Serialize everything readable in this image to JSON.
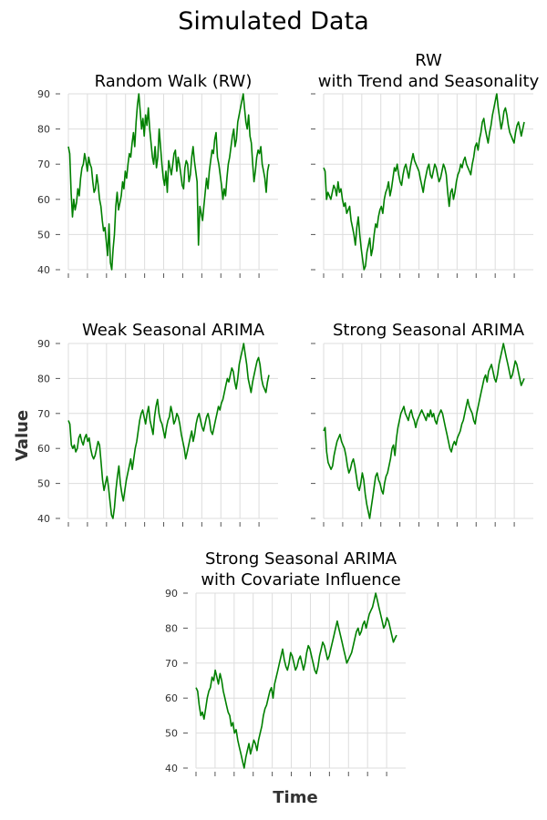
{
  "chart_data": {
    "title": "Simulated Data",
    "xlabel": "Time",
    "ylabel": "Value",
    "type": "line",
    "grid": true,
    "line_color": "#008000",
    "panels": [
      {
        "title": "Random Walk (RW)",
        "type": "line",
        "ylim": [
          40,
          90
        ],
        "yticks": [
          40,
          50,
          60,
          70,
          80,
          90
        ],
        "show_ytick_labels": true,
        "series": [
          {
            "values": [
              75,
              73,
              62,
              55,
              60,
              57,
              59,
              63,
              61,
              66,
              69,
              70,
              73,
              71,
              68,
              72,
              70,
              69,
              65,
              62,
              63,
              67,
              64,
              60,
              58,
              54,
              51,
              52,
              48,
              44,
              53,
              42,
              40,
              46,
              50,
              58,
              62,
              57,
              59,
              61,
              65,
              63,
              68,
              66,
              70,
              73,
              72,
              76,
              79,
              75,
              82,
              87,
              90,
              85,
              80,
              83,
              78,
              84,
              81,
              86,
              80,
              76,
              72,
              70,
              75,
              69,
              72,
              80,
              75,
              70,
              66,
              64,
              68,
              62,
              71,
              69,
              67,
              70,
              73,
              74,
              68,
              72,
              70,
              67,
              64,
              63,
              69,
              71,
              70,
              65,
              67,
              72,
              75,
              71,
              68,
              65,
              47,
              58,
              56,
              54,
              58,
              62,
              66,
              63,
              68,
              71,
              74,
              73,
              77,
              79,
              72,
              70,
              67,
              64,
              60,
              63,
              61,
              66,
              70,
              72,
              75,
              78,
              80,
              75,
              77,
              82,
              84,
              86,
              88,
              90,
              86,
              82,
              80,
              84,
              78,
              76,
              70,
              65,
              68,
              72,
              74,
              73,
              75,
              70,
              68,
              66,
              62,
              68,
              70
            ]
          }
        ]
      },
      {
        "title": "RW\nwith Trend and Seasonality",
        "type": "line",
        "ylim": [
          40,
          90
        ],
        "yticks": [
          40,
          50,
          60,
          70,
          80,
          90
        ],
        "show_ytick_labels": false,
        "series": [
          {
            "values": [
              69,
              68,
              60,
              62,
              61,
              60,
              62,
              64,
              63,
              61,
              65,
              62,
              63,
              60,
              58,
              59,
              56,
              57,
              58,
              54,
              52,
              50,
              47,
              52,
              55,
              50,
              46,
              43,
              40,
              41,
              45,
              47,
              49,
              44,
              46,
              50,
              53,
              52,
              55,
              57,
              58,
              56,
              60,
              62,
              63,
              65,
              61,
              63,
              66,
              69,
              68,
              70,
              67,
              65,
              64,
              67,
              69,
              70,
              68,
              66,
              69,
              71,
              73,
              71,
              70,
              69,
              68,
              66,
              64,
              62,
              65,
              67,
              69,
              70,
              67,
              66,
              68,
              70,
              69,
              67,
              65,
              66,
              68,
              70,
              69,
              67,
              62,
              58,
              62,
              63,
              60,
              62,
              65,
              67,
              68,
              70,
              69,
              71,
              72,
              70,
              69,
              68,
              67,
              70,
              72,
              75,
              76,
              74,
              77,
              79,
              82,
              83,
              80,
              78,
              76,
              79,
              81,
              84,
              86,
              88,
              90,
              86,
              83,
              80,
              82,
              85,
              86,
              84,
              81,
              79,
              78,
              77,
              76,
              79,
              81,
              82,
              80,
              78,
              80,
              82
            ]
          }
        ]
      },
      {
        "title": "Weak Seasonal ARIMA",
        "type": "line",
        "ylim": [
          40,
          90
        ],
        "yticks": [
          40,
          50,
          60,
          70,
          80,
          90
        ],
        "show_ytick_labels": true,
        "series": [
          {
            "values": [
              68,
              67,
              61,
              60,
              61,
              59,
              60,
              63,
              64,
              62,
              61,
              63,
              64,
              62,
              63,
              60,
              58,
              57,
              58,
              60,
              62,
              61,
              56,
              51,
              48,
              50,
              52,
              49,
              45,
              41,
              40,
              43,
              48,
              52,
              55,
              50,
              47,
              45,
              48,
              51,
              53,
              55,
              57,
              54,
              57,
              60,
              62,
              65,
              68,
              70,
              71,
              69,
              67,
              70,
              72,
              68,
              66,
              64,
              69,
              72,
              74,
              70,
              68,
              67,
              65,
              63,
              66,
              68,
              69,
              72,
              70,
              67,
              68,
              70,
              69,
              67,
              64,
              62,
              60,
              57,
              59,
              61,
              63,
              65,
              62,
              64,
              67,
              69,
              70,
              68,
              66,
              65,
              67,
              69,
              70,
              68,
              65,
              64,
              66,
              68,
              70,
              72,
              71,
              73,
              74,
              76,
              78,
              80,
              79,
              81,
              83,
              82,
              79,
              77,
              80,
              84,
              86,
              88,
              90,
              87,
              84,
              80,
              78,
              76,
              79,
              81,
              83,
              85,
              86,
              84,
              80,
              78,
              77,
              76,
              79,
              81
            ]
          }
        ]
      },
      {
        "title": "Strong Seasonal ARIMA",
        "type": "line",
        "ylim": [
          40,
          90
        ],
        "yticks": [
          40,
          50,
          60,
          70,
          80,
          90
        ],
        "show_ytick_labels": false,
        "series": [
          {
            "values": [
              65,
              66,
              59,
              56,
              55,
              54,
              55,
              58,
              60,
              62,
              63,
              64,
              62,
              61,
              60,
              58,
              55,
              53,
              54,
              56,
              57,
              55,
              52,
              49,
              48,
              50,
              53,
              51,
              47,
              44,
              42,
              40,
              43,
              46,
              49,
              52,
              53,
              51,
              50,
              48,
              47,
              50,
              52,
              53,
              55,
              57,
              60,
              61,
              58,
              63,
              66,
              68,
              70,
              71,
              72,
              70,
              69,
              68,
              70,
              71,
              69,
              68,
              66,
              68,
              69,
              70,
              71,
              70,
              69,
              68,
              70,
              69,
              71,
              69,
              70,
              68,
              67,
              69,
              70,
              71,
              70,
              68,
              66,
              64,
              62,
              60,
              59,
              61,
              62,
              61,
              63,
              64,
              65,
              67,
              68,
              70,
              72,
              74,
              72,
              71,
              70,
              68,
              67,
              70,
              72,
              74,
              76,
              78,
              80,
              81,
              79,
              82,
              83,
              84,
              82,
              80,
              79,
              81,
              84,
              86,
              88,
              90,
              88,
              86,
              84,
              82,
              80,
              81,
              83,
              85,
              84,
              82,
              80,
              78,
              79,
              80
            ]
          }
        ]
      },
      {
        "title": "Strong Seasonal ARIMA\nwith Covariate Influence",
        "type": "line",
        "ylim": [
          40,
          90
        ],
        "yticks": [
          40,
          50,
          60,
          70,
          80,
          90
        ],
        "show_ytick_labels": true,
        "series": [
          {
            "values": [
              63,
              62,
              58,
              55,
              56,
              54,
              57,
              60,
              62,
              63,
              66,
              65,
              68,
              66,
              64,
              67,
              65,
              62,
              60,
              58,
              56,
              55,
              52,
              53,
              50,
              51,
              48,
              46,
              44,
              42,
              40,
              43,
              45,
              47,
              44,
              46,
              48,
              47,
              45,
              48,
              50,
              52,
              55,
              57,
              58,
              60,
              62,
              63,
              60,
              64,
              66,
              68,
              70,
              72,
              74,
              71,
              69,
              68,
              70,
              73,
              72,
              70,
              68,
              69,
              71,
              72,
              70,
              68,
              70,
              73,
              75,
              74,
              72,
              70,
              68,
              67,
              69,
              72,
              74,
              76,
              75,
              73,
              71,
              72,
              74,
              76,
              78,
              80,
              82,
              80,
              78,
              76,
              74,
              72,
              70,
              71,
              72,
              73,
              75,
              77,
              79,
              80,
              78,
              79,
              81,
              82,
              80,
              82,
              84,
              85,
              86,
              88,
              90,
              88,
              86,
              84,
              82,
              80,
              81,
              83,
              82,
              80,
              78,
              76,
              77,
              78
            ]
          }
        ]
      }
    ]
  }
}
